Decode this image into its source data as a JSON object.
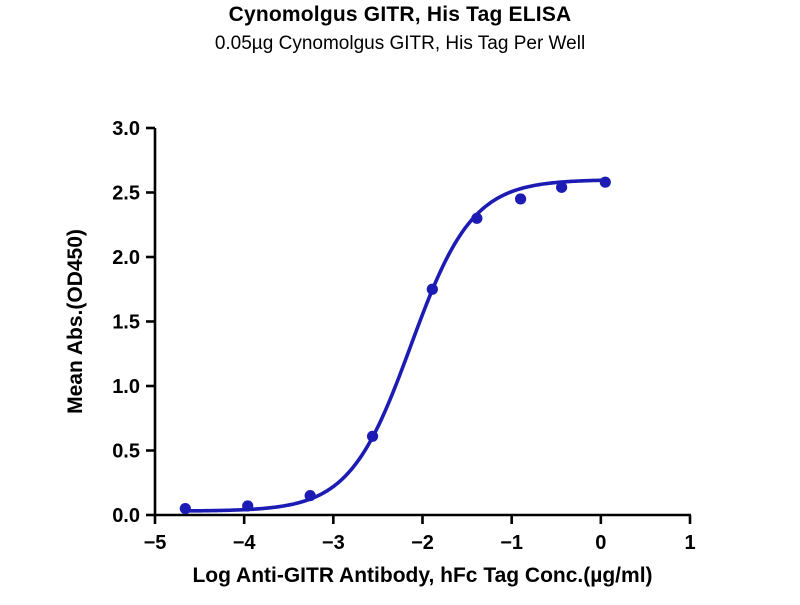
{
  "chart_data": {
    "type": "scatter",
    "title": "Cynomolgus GITR, His Tag ELISA",
    "subtitle": "0.05µg Cynomolgus GITR, His Tag Per Well",
    "xlabel": "Log Anti-GITR Antibody, hFc Tag Conc.(µg/ml)",
    "ylabel": "Mean Abs.(OD450)",
    "xlim": [
      -5,
      1
    ],
    "ylim": [
      0,
      3
    ],
    "x_ticks": [
      -5,
      -4,
      -3,
      -2,
      -1,
      0,
      1
    ],
    "y_ticks": [
      0.0,
      0.5,
      1.0,
      1.5,
      2.0,
      2.5,
      3.0
    ],
    "points": [
      {
        "x": -4.66,
        "y": 0.05
      },
      {
        "x": -3.96,
        "y": 0.07
      },
      {
        "x": -3.26,
        "y": 0.15
      },
      {
        "x": -2.56,
        "y": 0.61
      },
      {
        "x": -1.89,
        "y": 1.75
      },
      {
        "x": -1.39,
        "y": 2.3
      },
      {
        "x": -0.9,
        "y": 2.45
      },
      {
        "x": -0.44,
        "y": 2.54
      },
      {
        "x": 0.05,
        "y": 2.58
      }
    ],
    "fit_curve": {
      "model": "4PL-sigmoid",
      "bottom": 0.03,
      "top": 2.6,
      "log_ec50": -2.13,
      "hill": 1.26
    },
    "series_color": "#1c1cb4",
    "axis_color": "#000000",
    "grid": false,
    "legend": "none"
  }
}
